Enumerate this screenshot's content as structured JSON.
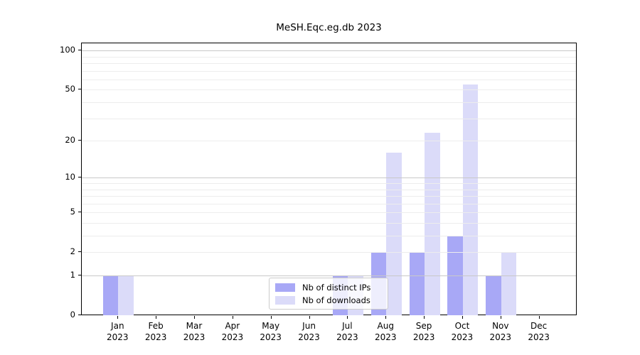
{
  "chart_data": {
    "type": "bar",
    "title": "MeSH.Eqc.eg.db 2023",
    "categories": [
      "Jan",
      "Feb",
      "Mar",
      "Apr",
      "May",
      "Jun",
      "Jul",
      "Aug",
      "Sep",
      "Oct",
      "Nov",
      "Dec"
    ],
    "x_tick_year": "2023",
    "series": [
      {
        "name": "Nb of distinct IPs",
        "color": "#a8a8f6",
        "values": [
          1,
          0,
          0,
          0,
          0,
          0,
          1,
          2,
          2,
          3,
          1,
          0
        ]
      },
      {
        "name": "Nb of downloads",
        "color": "#dbdbf9",
        "values": [
          1,
          0,
          0,
          0,
          0,
          0,
          1,
          16,
          23,
          55,
          2,
          0
        ]
      }
    ],
    "yscale": "log1p",
    "yticks": [
      0,
      1,
      2,
      5,
      10,
      20,
      50,
      100
    ],
    "ylim": [
      0,
      114
    ],
    "major_gridlines": [
      1,
      10,
      100
    ],
    "minor_gridlines": [
      2,
      3,
      4,
      5,
      6,
      7,
      8,
      9,
      20,
      30,
      40,
      50,
      60,
      70,
      80,
      90
    ],
    "grid": "horizontal",
    "legend_position": "lower center",
    "xlabel": "",
    "ylabel": ""
  }
}
